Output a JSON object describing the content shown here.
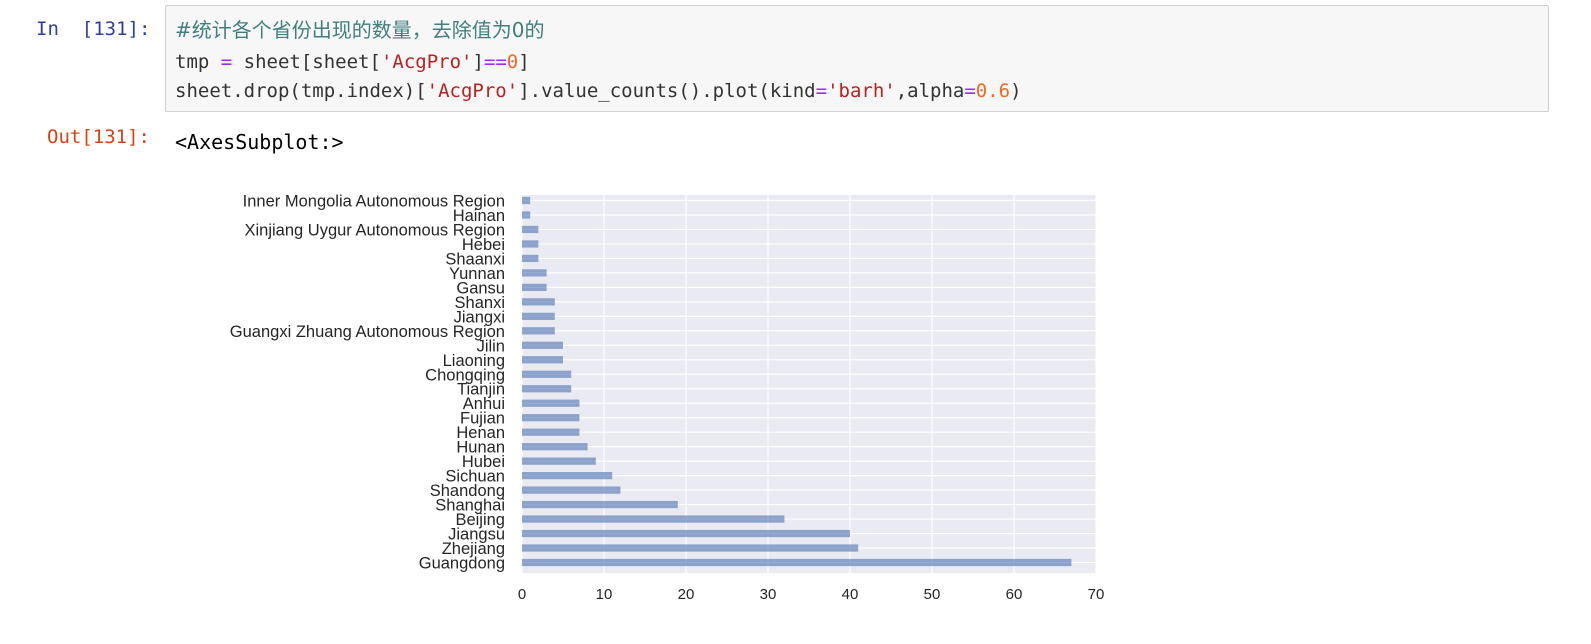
{
  "notebook": {
    "in_prompt": "In  [131]:",
    "out_prompt": "Out[131]:",
    "code": {
      "comment": "#统计各个省份出现的数量，去除值为0的",
      "line2": {
        "a": "tmp ",
        "eq": "=",
        "b": " sheet[sheet[",
        "str": "'AcgPro'",
        "c": "]",
        "eqeq": "==",
        "num": "0",
        "d": "]"
      },
      "line3": {
        "a": "sheet.drop(tmp.index)[",
        "str1": "'AcgPro'",
        "b": "].value_counts().plot(kind",
        "eq1": "=",
        "str2": "'barh'",
        "c": ",alpha",
        "eq2": "=",
        "num": "0.6",
        "d": ")"
      }
    },
    "output_text": "<AxesSubplot:>"
  },
  "chart_data": {
    "type": "bar",
    "orientation": "horizontal",
    "categories": [
      "Guangdong",
      "Zhejiang",
      "Jiangsu",
      "Beijing",
      "Shanghai",
      "Shandong",
      "Sichuan",
      "Hubei",
      "Hunan",
      "Henan",
      "Fujian",
      "Anhui",
      "Tianjin",
      "Chongqing",
      "Liaoning",
      "Jilin",
      "Guangxi Zhuang Autonomous Region",
      "Jiangxi",
      "Shanxi",
      "Gansu",
      "Yunnan",
      "Shaanxi",
      "Hebei",
      "Xinjiang Uygur Autonomous Region",
      "Hainan",
      "Inner Mongolia Autonomous Region"
    ],
    "values": [
      67,
      41,
      40,
      32,
      19,
      12,
      11,
      9,
      8,
      7,
      7,
      7,
      6,
      6,
      5,
      5,
      4,
      4,
      4,
      3,
      3,
      2,
      2,
      2,
      1,
      1
    ],
    "xlim": [
      0,
      70
    ],
    "xticks": [
      "0",
      "10",
      "20",
      "30",
      "40",
      "50",
      "60",
      "70"
    ],
    "title": "",
    "xlabel": "",
    "ylabel": "",
    "grid": true,
    "bar_color": "#4c72b0",
    "alpha": 0.6,
    "background": "#eaeaf2"
  }
}
